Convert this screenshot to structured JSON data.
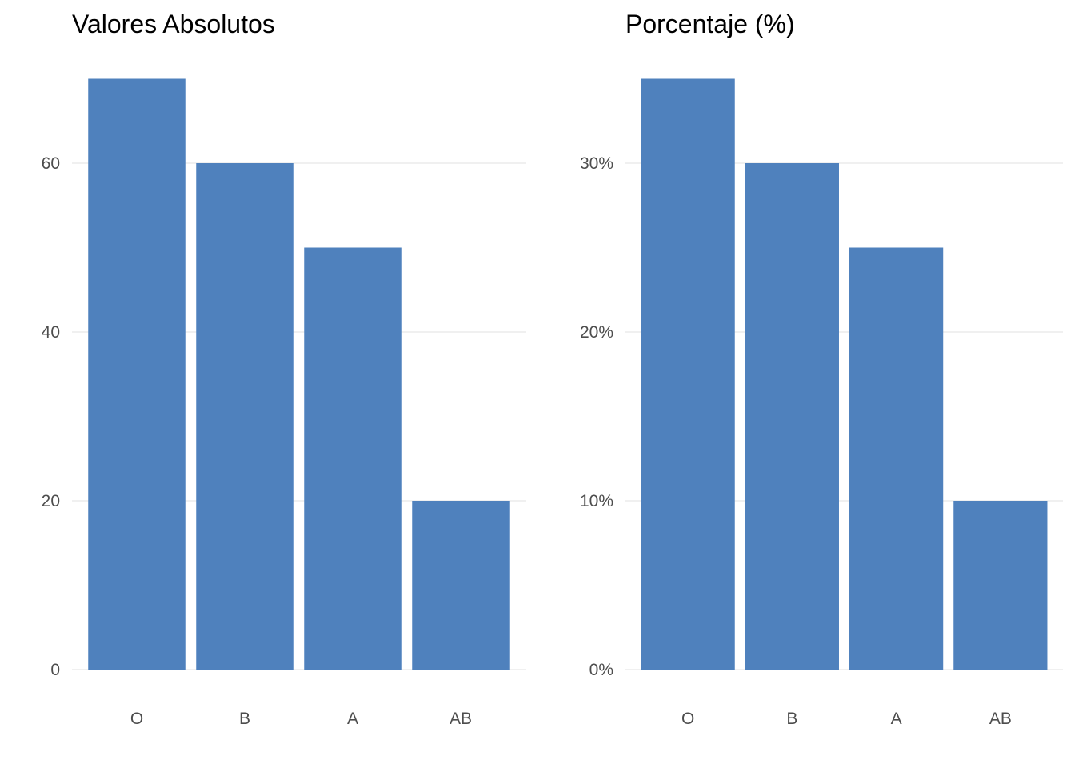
{
  "bar_color": "#4F81BD",
  "chart_data": [
    {
      "type": "bar",
      "title": "Valores Absolutos",
      "categories": [
        "O",
        "B",
        "A",
        "AB"
      ],
      "values": [
        70,
        60,
        50,
        20
      ],
      "xlabel": "",
      "ylabel": "",
      "ylim": [
        0,
        70
      ],
      "yticks": [
        0,
        20,
        40,
        60
      ],
      "ytick_labels": [
        "0",
        "20",
        "40",
        "60"
      ],
      "grid": true
    },
    {
      "type": "bar",
      "title": "Porcentaje (%)",
      "categories": [
        "O",
        "B",
        "A",
        "AB"
      ],
      "values": [
        35,
        30,
        25,
        10
      ],
      "xlabel": "",
      "ylabel": "",
      "ylim": [
        0,
        35
      ],
      "yticks": [
        0,
        10,
        20,
        30
      ],
      "ytick_labels": [
        "0%",
        "10%",
        "20%",
        "30%"
      ],
      "grid": true
    }
  ]
}
